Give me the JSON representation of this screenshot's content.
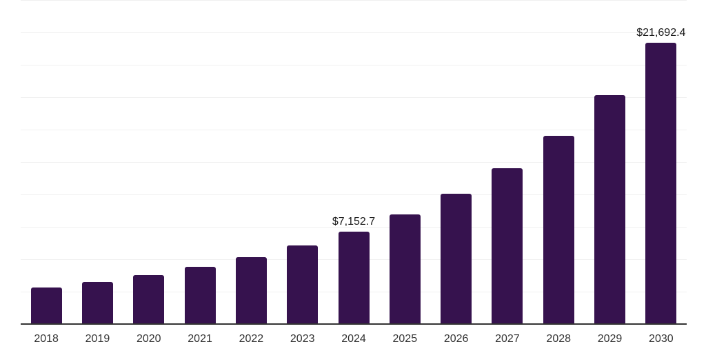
{
  "chart_data": {
    "type": "bar",
    "title": "",
    "xlabel": "",
    "ylabel": "",
    "categories": [
      "2018",
      "2019",
      "2020",
      "2021",
      "2022",
      "2023",
      "2024",
      "2025",
      "2026",
      "2027",
      "2028",
      "2029",
      "2030"
    ],
    "values": [
      2800,
      3230,
      3760,
      4400,
      5140,
      6060,
      7152.7,
      8440,
      10060,
      12040,
      14510,
      17650,
      21692.4
    ],
    "point_labels": [
      "",
      "",
      "",
      "",
      "",
      "",
      "$7,152.7",
      "",
      "",
      "",
      "",
      "",
      "$21,692.4"
    ],
    "ylim": [
      0,
      25000
    ],
    "gridline_step": 2500,
    "grid": true,
    "legend": false,
    "y_tick_labels_shown": false,
    "colors": {
      "bar": "#36124E",
      "gridline": "#F0F0F0",
      "axis_line": "#333333",
      "tick_label": "#333333",
      "data_label": "#1A1A1A",
      "background": "#FFFFFF"
    }
  }
}
